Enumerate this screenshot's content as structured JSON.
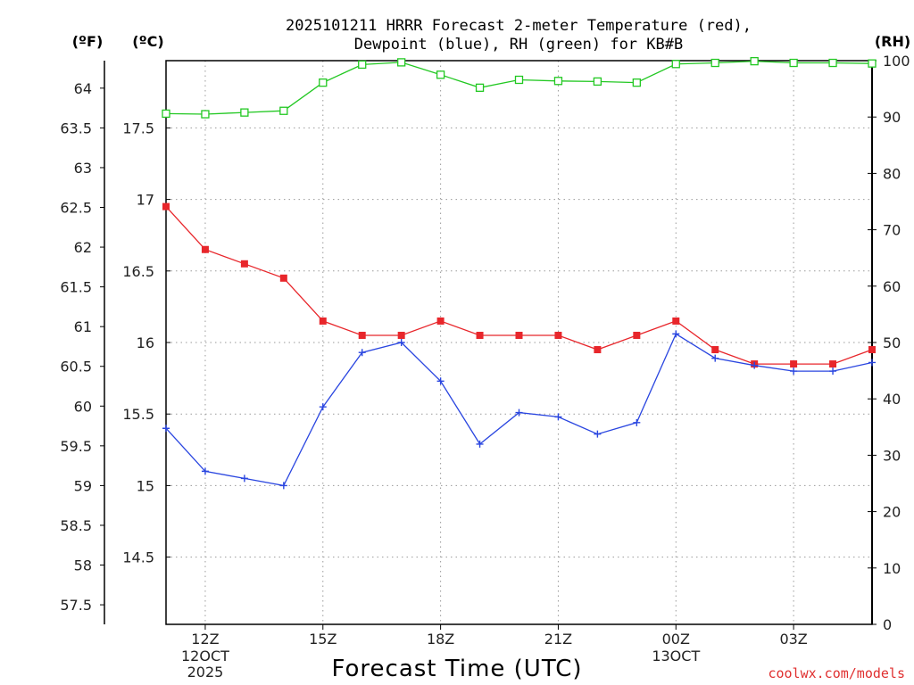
{
  "title_line1": "2025101211 HRRR Forecast 2-meter Temperature (red),",
  "title_line2": "Dewpoint (blue), RH (green) for KB#B",
  "credit": "coolwx.com/models",
  "colors": {
    "temperature": "#e8262b",
    "dewpoint": "#2a46e0",
    "rh": "#22c822",
    "credit": "#e03030"
  },
  "chart_data": {
    "type": "line",
    "title": "2025101211 HRRR Forecast 2-meter Temperature (red), Dewpoint (blue), RH (green) for KB#B",
    "xlabel": "Forecast Time (UTC)",
    "x_hours": [
      11,
      12,
      13,
      14,
      15,
      16,
      17,
      18,
      19,
      20,
      21,
      22,
      23,
      24,
      25,
      26,
      27,
      28,
      29
    ],
    "xlim": [
      11,
      29
    ],
    "x_ticks": [
      {
        "hour": 12,
        "label": "12Z",
        "sub1": "12OCT",
        "sub2": "2025"
      },
      {
        "hour": 15,
        "label": "15Z",
        "sub1": "",
        "sub2": ""
      },
      {
        "hour": 18,
        "label": "18Z",
        "sub1": "",
        "sub2": ""
      },
      {
        "hour": 21,
        "label": "21Z",
        "sub1": "",
        "sub2": ""
      },
      {
        "hour": 24,
        "label": "00Z",
        "sub1": "13OCT",
        "sub2": ""
      },
      {
        "hour": 27,
        "label": "03Z",
        "sub1": "",
        "sub2": ""
      }
    ],
    "axes": {
      "fahrenheit": {
        "label": "(ºF)",
        "ticks": [
          "57.5",
          "58",
          "58.5",
          "59",
          "59.5",
          "60",
          "60.5",
          "61",
          "61.5",
          "62",
          "62.5",
          "63",
          "63.5",
          "64"
        ]
      },
      "celsius": {
        "label": "(ºC)",
        "ylim": [
          14.03,
          17.97
        ],
        "ticks": [
          "14.5",
          "15",
          "15.5",
          "16",
          "16.5",
          "17",
          "17.5"
        ]
      },
      "rh": {
        "label": "(RH)",
        "ylim": [
          0,
          100
        ],
        "ticks": [
          "0",
          "10",
          "20",
          "30",
          "40",
          "50",
          "60",
          "70",
          "80",
          "90",
          "100"
        ]
      }
    },
    "series": [
      {
        "name": "Temperature",
        "units": "C",
        "marker": "filled-square",
        "values": [
          16.95,
          16.65,
          16.55,
          16.45,
          16.15,
          16.05,
          16.05,
          16.15,
          16.05,
          16.05,
          16.05,
          15.95,
          16.05,
          16.15,
          15.95,
          15.85,
          15.85,
          15.85,
          15.95
        ]
      },
      {
        "name": "Dewpoint",
        "units": "C",
        "marker": "plus",
        "values": [
          15.4,
          15.1,
          15.05,
          15.0,
          15.55,
          15.93,
          16.0,
          15.73,
          15.29,
          15.51,
          15.48,
          15.36,
          15.44,
          16.06,
          15.89,
          15.84,
          15.8,
          15.8,
          15.86
        ]
      },
      {
        "name": "RH",
        "units": "%",
        "marker": "open-square",
        "values": [
          90.6,
          90.5,
          90.8,
          91.1,
          96.1,
          99.3,
          99.7,
          97.5,
          95.2,
          96.6,
          96.4,
          96.3,
          96.1,
          99.4,
          99.6,
          99.9,
          99.6,
          99.6,
          99.5
        ]
      }
    ]
  }
}
